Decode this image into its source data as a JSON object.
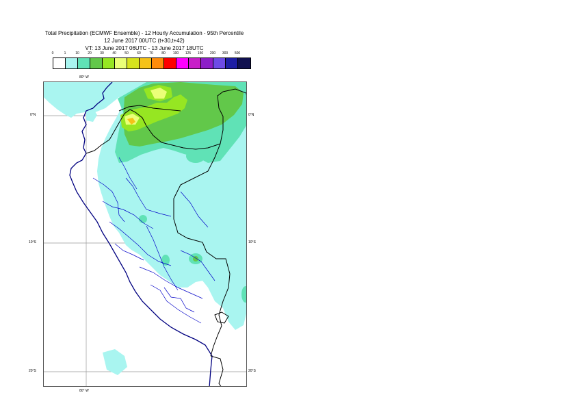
{
  "title": {
    "line1": "Total Precipitation (ECMWF Ensemble) - 12 Hourly Accumulation - 95th Percentile",
    "line2": "12 June 2017 00UTC (t+30,t+42)",
    "line3": "VT: 13 June 2017 06UTC - 13 June 2017 18UTC"
  },
  "legend": {
    "labels": [
      "0",
      "1",
      "10",
      "20",
      "30",
      "40",
      "50",
      "60",
      "70",
      "80",
      "100",
      "125",
      "150",
      "200",
      "300",
      "500"
    ],
    "colors": [
      "#ffffff",
      "#a9f5f0",
      "#60e2b6",
      "#62c84a",
      "#96e622",
      "#eaff78",
      "#d7e31c",
      "#f5c218",
      "#ff8c0a",
      "#ff0000",
      "#ff00ff",
      "#c81ec8",
      "#8d1ec8",
      "#6e4be6",
      "#1e1ea5",
      "#101050"
    ]
  },
  "map": {
    "lon_labels": {
      "top": "80° W",
      "bottom": "80° W"
    },
    "lat_labels": [
      {
        "left": "0°N",
        "right": "0°N"
      },
      {
        "left": "10°S",
        "right": "10°S"
      },
      {
        "left": "20°S",
        "right": "20°S"
      }
    ],
    "colors": {
      "ocean": "#ffffff",
      "light_rain": "#a9f5f0",
      "moderate_rain": "#60e2b6",
      "heavier_rain": "#62c84a",
      "heavy_rain": "#96e622",
      "intense_rain": "#eaff78",
      "peak_rain": "#f5c218",
      "coastline": "#000080",
      "border": "#000000",
      "province": "#0000c8"
    }
  }
}
